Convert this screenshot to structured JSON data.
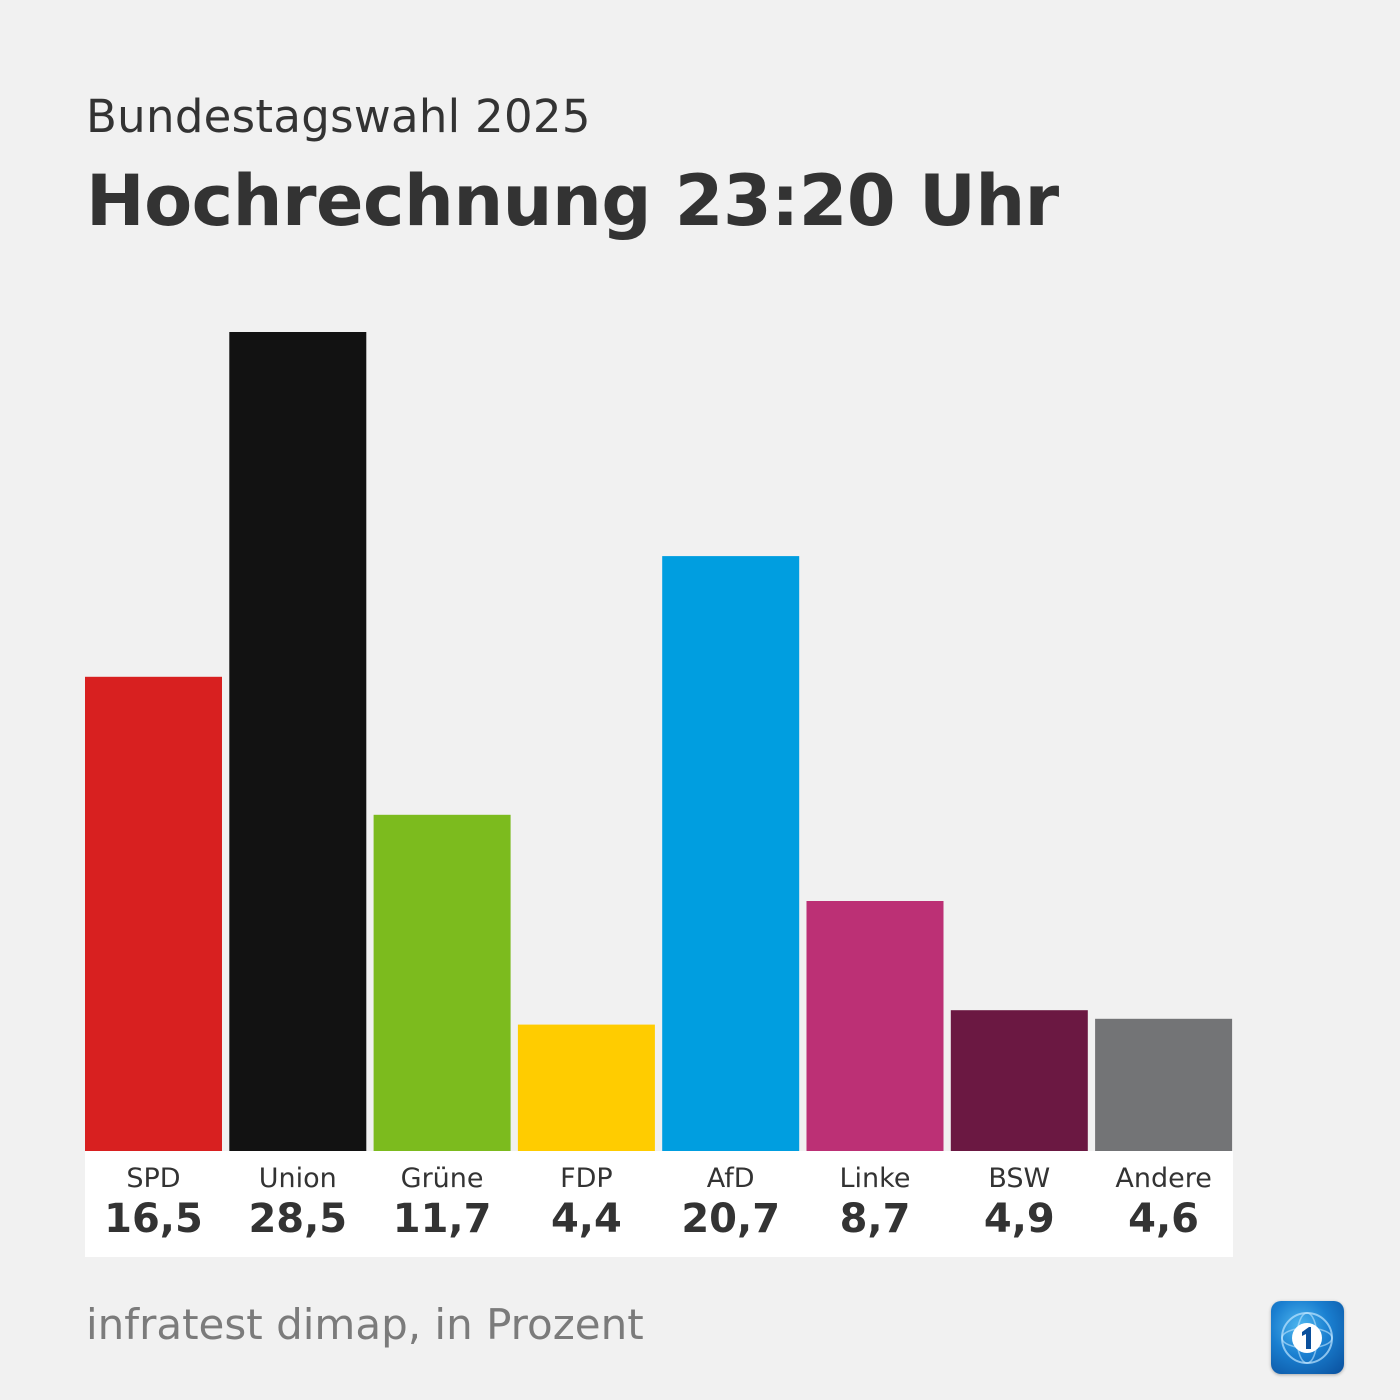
{
  "header": {
    "subtitle": "Bundestagswahl 2025",
    "title": "Hochrechnung 23:20 Uhr"
  },
  "footer": {
    "source": "infratest dimap, in Prozent",
    "logo_icon": "ard-tagesschau-logo-icon"
  },
  "chart_data": {
    "type": "bar",
    "title": "Hochrechnung 23:20 Uhr",
    "subtitle": "Bundestagswahl 2025",
    "xlabel": "",
    "ylabel": "",
    "unit": "Prozent",
    "grid": false,
    "ylim": [
      0,
      28.5
    ],
    "categories": [
      "SPD",
      "Union",
      "Grüne",
      "FDP",
      "AfD",
      "Linke",
      "BSW",
      "Andere"
    ],
    "values": [
      16.5,
      28.5,
      11.7,
      4.4,
      20.7,
      8.7,
      4.9,
      4.6
    ],
    "value_labels": [
      "16,5",
      "28,5",
      "11,7",
      "4,4",
      "20,7",
      "8,7",
      "4,9",
      "4,6"
    ],
    "colors": [
      "#d82020",
      "#121212",
      "#7cbb1e",
      "#ffcc00",
      "#009ee0",
      "#bc3075",
      "#6b1842",
      "#737476"
    ]
  }
}
